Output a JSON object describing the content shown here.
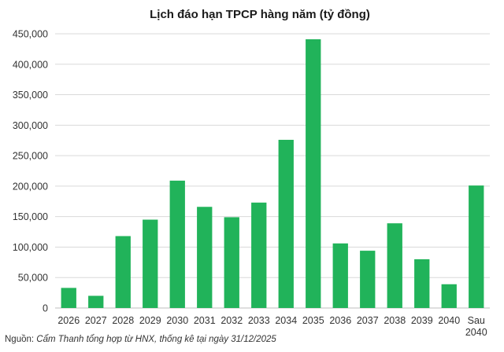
{
  "chart_data": {
    "type": "bar",
    "title": "Lịch đáo hạn TPCP hàng năm (tỷ đồng)",
    "xlabel": "",
    "ylabel": "",
    "categories": [
      "2026",
      "2027",
      "2028",
      "2029",
      "2030",
      "2031",
      "2032",
      "2033",
      "2034",
      "2035",
      "2036",
      "2037",
      "2038",
      "2039",
      "2040",
      "Sau 2040"
    ],
    "values": [
      33000,
      20000,
      118000,
      145000,
      209000,
      166000,
      149000,
      173000,
      276000,
      441000,
      106000,
      94000,
      139000,
      80000,
      39000,
      201000
    ],
    "ylim": [
      0,
      450000
    ],
    "yticks": [
      "0",
      "50,000",
      "100,000",
      "150,000",
      "200,000",
      "250,000",
      "300,000",
      "350,000",
      "400,000",
      "450,000"
    ],
    "grid": true,
    "legend": "none",
    "bar_color": "#21b35a"
  },
  "source": {
    "label": "Nguồn:",
    "text": "Cẩm Thanh tổng hợp từ HNX, thống kê tại ngày 31/12/2025"
  }
}
